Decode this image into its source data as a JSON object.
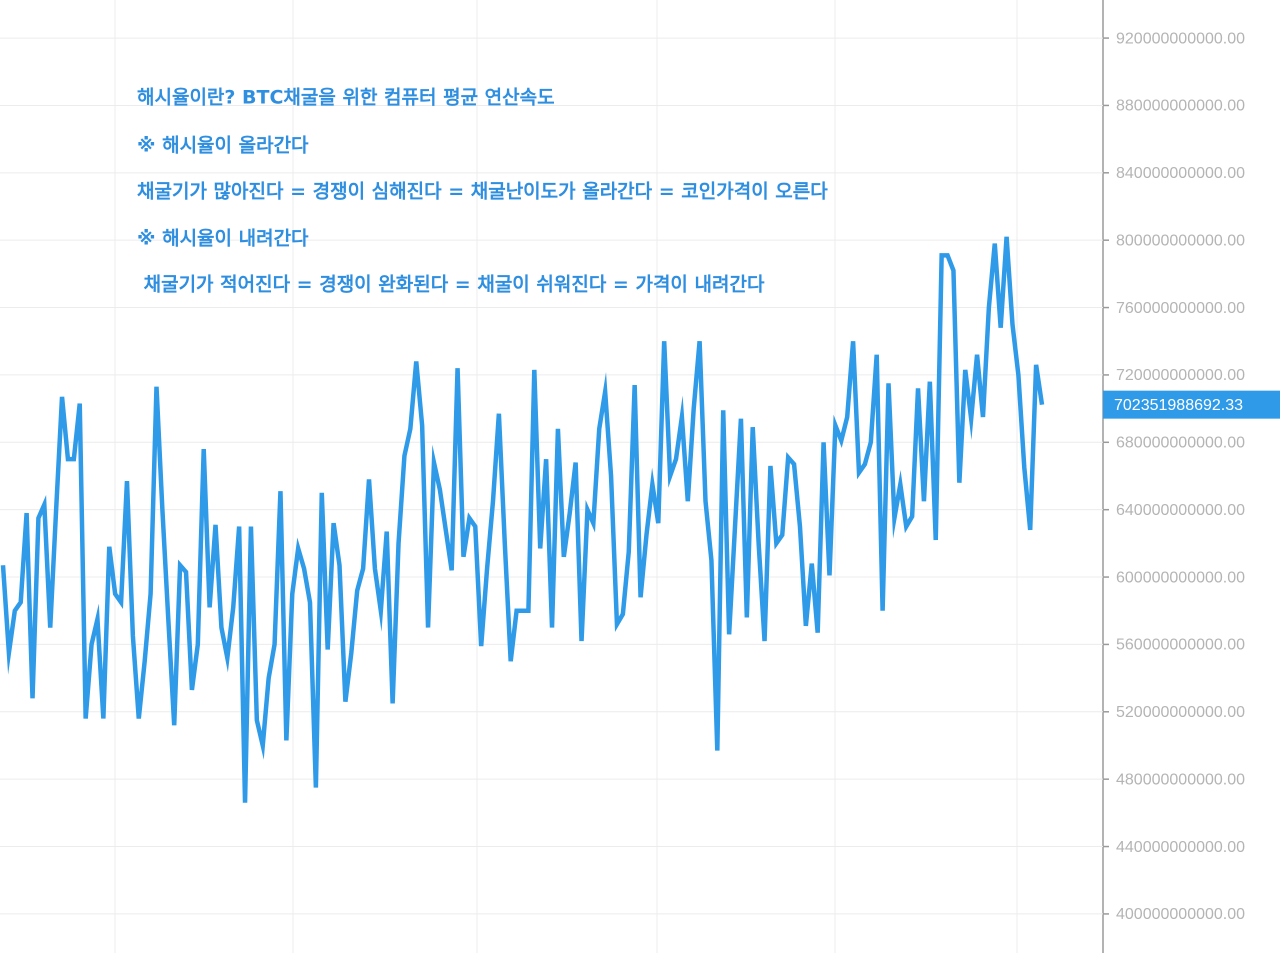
{
  "chart_data": {
    "type": "line",
    "annotations": [
      "해시율이란? BTC채굴을 위한 컴퓨터 평균 연산속도",
      "※ 해시율이 올라간다",
      "채굴기가 많아진다 = 경쟁이 심해진다 = 채굴난이도가 올라간다 = 코인가격이 오른다",
      "※ 해시율이 내려간다",
      " 채굴기가 적어진다 = 경쟁이 완화된다 = 채굴이 쉬워진다 = 가격이 내려간다"
    ],
    "color": "#2f9be8",
    "values": [
      607000000000.0,
      555000000000.0,
      580000000000.0,
      585000000000.0,
      638000000000.0,
      528000000000.0,
      635000000000.0,
      643000000000.0,
      570000000000.0,
      640000000000.0,
      707000000000.0,
      670000000000.0,
      670000000000.0,
      703000000000.0,
      516000000000.0,
      560000000000.0,
      575000000000.0,
      516000000000.0,
      618000000000.0,
      590000000000.0,
      585000000000.0,
      657000000000.0,
      565000000000.0,
      516000000000.0,
      550000000000.0,
      590000000000.0,
      713000000000.0,
      640000000000.0,
      575000000000.0,
      512000000000.0,
      607000000000.0,
      603000000000.0,
      533000000000.0,
      560000000000.0,
      676000000000.0,
      582000000000.0,
      631000000000.0,
      570000000000.0,
      552000000000.0,
      582000000000.0,
      630000000000.0,
      466000000000.0,
      630000000000.0,
      515000000000.0,
      500000000000.0,
      540000000000.0,
      560000000000.0,
      651000000000.0,
      503000000000.0,
      590000000000.0,
      617000000000.0,
      605000000000.0,
      585000000000.0,
      475000000000.0,
      650000000000.0,
      557000000000.0,
      632000000000.0,
      607000000000.0,
      526000000000.0,
      555000000000.0,
      592000000000.0,
      605000000000.0,
      658000000000.0,
      605000000000.0,
      580000000000.0,
      627000000000.0,
      525000000000.0,
      620000000000.0,
      672000000000.0,
      688000000000.0,
      728000000000.0,
      690000000000.0,
      570000000000.0,
      668000000000.0,
      652000000000.0,
      628000000000.0,
      604000000000.0,
      724000000000.0,
      612000000000.0,
      635000000000.0,
      630000000000.0,
      559000000000.0,
      605000000000.0,
      645000000000.0,
      697000000000.0,
      620000000000.0,
      550000000000.0,
      580000000000.0,
      580000000000.0,
      580000000000.0,
      723000000000.0,
      617000000000.0,
      670000000000.0,
      570000000000.0,
      688000000000.0,
      612000000000.0,
      638000000000.0,
      668000000000.0,
      562000000000.0,
      640000000000.0,
      632000000000.0,
      688000000000.0,
      710000000000.0,
      660000000000.0,
      572000000000.0,
      578000000000.0,
      615000000000.0,
      714000000000.0,
      588000000000.0,
      625000000000.0,
      655000000000.0,
      632000000000.0,
      740000000000.0,
      660000000000.0,
      670000000000.0,
      695000000000.0,
      645000000000.0,
      700000000000.0,
      740000000000.0,
      645000000000.0,
      610000000000.0,
      497000000000.0,
      699000000000.0,
      566000000000.0,
      630000000000.0,
      694000000000.0,
      576000000000.0,
      689000000000.0,
      620000000000.0,
      562000000000.0,
      666000000000.0,
      620000000000.0,
      625000000000.0,
      671000000000.0,
      667000000000.0,
      630000000000.0,
      571000000000.0,
      608000000000.0,
      567000000000.0,
      680000000000.0,
      601000000000.0,
      690000000000.0,
      681000000000.0,
      695000000000.0,
      740000000000.0,
      662000000000.0,
      667000000000.0,
      680000000000.0,
      732000000000.0,
      580000000000.0,
      715000000000.0,
      635000000000.0,
      655000000000.0,
      630000000000.0,
      636000000000.0,
      712000000000.0,
      645000000000.0,
      716000000000.0,
      622000000000.0,
      791000000000.0,
      791000000000.0,
      782000000000.0,
      656000000000.0,
      723000000000.0,
      694000000000.0,
      732000000000.0,
      695000000000.0,
      760000000000.0,
      798000000000.0,
      748000000000.0,
      802000000000.0,
      750000000000.0,
      720000000000.0,
      665000000000.0,
      628000000000.0,
      726000000000.0,
      702351988692.33
    ],
    "ylim": [
      376800000000.0,
      942600000000.0
    ],
    "yticks": [
      {
        "value": 400000000000.0,
        "label": "400000000000.00"
      },
      {
        "value": 440000000000.0,
        "label": "440000000000.00"
      },
      {
        "value": 480000000000.0,
        "label": "480000000000.00"
      },
      {
        "value": 520000000000.0,
        "label": "520000000000.00"
      },
      {
        "value": 560000000000.0,
        "label": "560000000000.00"
      },
      {
        "value": 600000000000.0,
        "label": "600000000000.00"
      },
      {
        "value": 640000000000.0,
        "label": "640000000000.00"
      },
      {
        "value": 680000000000.0,
        "label": "680000000000.00"
      },
      {
        "value": 720000000000.0,
        "label": "720000000000.00"
      },
      {
        "value": 760000000000.0,
        "label": "760000000000.00"
      },
      {
        "value": 800000000000.0,
        "label": "800000000000.00"
      },
      {
        "value": 840000000000.0,
        "label": "840000000000.00"
      },
      {
        "value": 880000000000.0,
        "label": "880000000000.00"
      },
      {
        "value": 920000000000.0,
        "label": "920000000000.00"
      }
    ],
    "grid": true,
    "axis_side": "right"
  }
}
